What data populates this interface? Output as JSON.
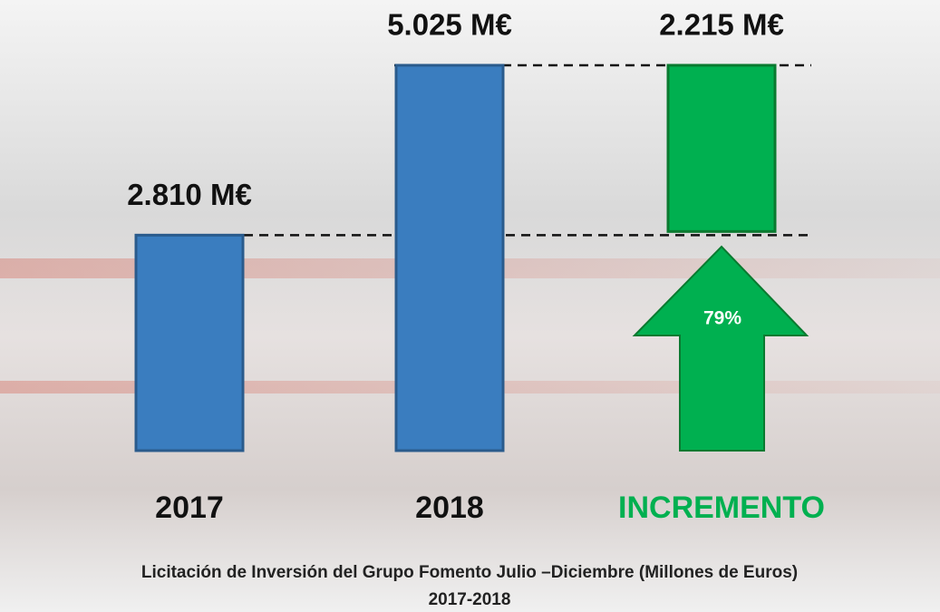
{
  "chart_data": {
    "type": "waterfall",
    "title": "Licitación  de Inversión del Grupo Fomento Julio –Diciembre (Millones de Euros)",
    "subtitle": "2017-2018",
    "categories": [
      "2017",
      "2018",
      "INCREMENTO"
    ],
    "values": [
      2810,
      5025,
      2215
    ],
    "value_labels": [
      "2.810 M€",
      "5.025 M€",
      "2.215 M€"
    ],
    "colors": [
      "#3a7dbf",
      "#3a7dbf",
      "#00b050"
    ],
    "annotation": "79%"
  }
}
